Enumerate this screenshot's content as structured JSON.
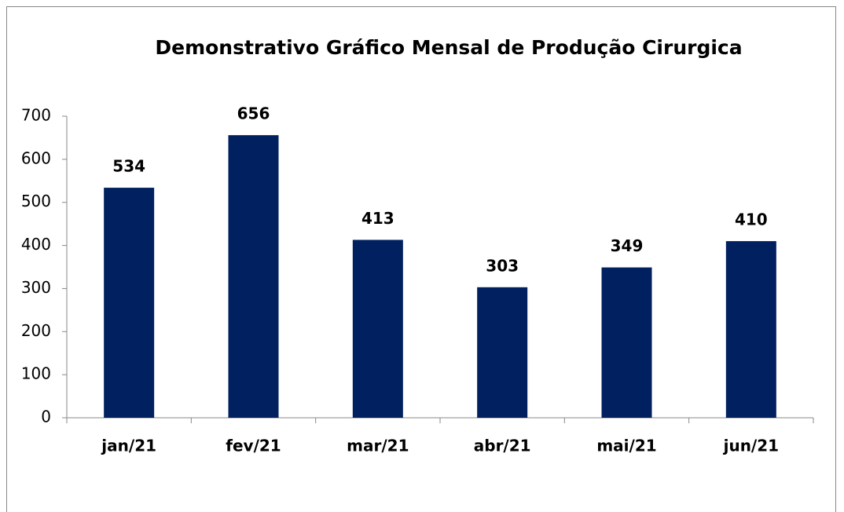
{
  "chart_data": {
    "type": "bar",
    "title": "Demonstrativo Gráfico Mensal de Produção Cirurgica",
    "categories": [
      "jan/21",
      "fev/21",
      "mar/21",
      "abr/21",
      "mai/21",
      "jun/21"
    ],
    "values": [
      534,
      656,
      413,
      303,
      349,
      410
    ],
    "color": "#002060",
    "ylim": [
      0,
      700
    ],
    "yticks": [
      0,
      100,
      200,
      300,
      400,
      500,
      600,
      700
    ],
    "grid": false
  }
}
